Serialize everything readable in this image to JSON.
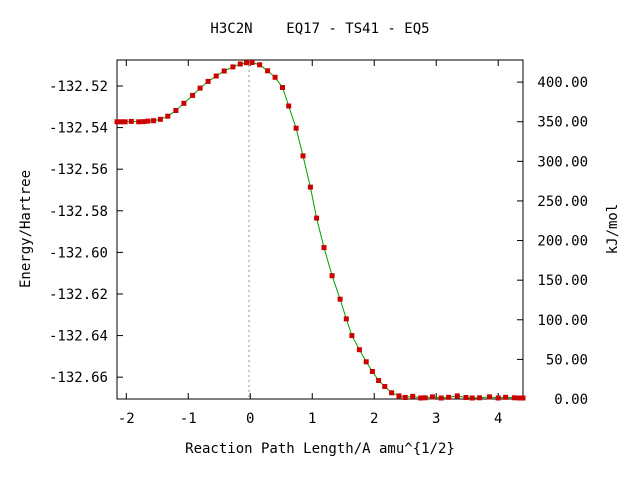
{
  "chart_data": {
    "type": "line",
    "title": "H3C2N    EQ17 - TS41 - EQ5",
    "xlabel": "Reaction Path Length/A amu^{1/2}",
    "ylabel": "Energy/Hartree",
    "y2label": "kJ/mol",
    "xlim": [
      -2.15,
      4.4
    ],
    "ylim": [
      -132.6705,
      -132.5075
    ],
    "y2lim": [
      0.0,
      427.9
    ],
    "x_ticks": [
      "-2",
      "-1",
      "0",
      "1",
      "2",
      "3",
      "4"
    ],
    "y_ticks": [
      "-132.52",
      "-132.54",
      "-132.56",
      "-132.58",
      "-132.60",
      "-132.62",
      "-132.64",
      "-132.66"
    ],
    "y2_ticks": [
      "400.00",
      "350.00",
      "300.00",
      "250.00",
      "200.00",
      "150.00",
      "100.00",
      "50.00",
      "0.00"
    ],
    "ts_marker_x": -0.02,
    "grid": false,
    "line_color": "#00a000",
    "marker_color": "#cc0000",
    "points": [
      [
        -2.15,
        -132.5372
      ],
      [
        -2.08,
        -132.5372
      ],
      [
        -2.02,
        -132.5372
      ],
      [
        -1.92,
        -132.537
      ],
      [
        -1.8,
        -132.5372
      ],
      [
        -1.72,
        -132.5371
      ],
      [
        -1.65,
        -132.5369
      ],
      [
        -1.56,
        -132.5367
      ],
      [
        -1.45,
        -132.536
      ],
      [
        -1.33,
        -132.5345
      ],
      [
        -1.2,
        -132.5318
      ],
      [
        -1.07,
        -132.5283
      ],
      [
        -0.93,
        -132.5245
      ],
      [
        -0.81,
        -132.521
      ],
      [
        -0.68,
        -132.5178
      ],
      [
        -0.55,
        -132.5152
      ],
      [
        -0.42,
        -132.5128
      ],
      [
        -0.28,
        -132.5108
      ],
      [
        -0.16,
        -132.5094
      ],
      [
        -0.06,
        -132.5088
      ],
      [
        0.03,
        -132.5087
      ],
      [
        0.15,
        -132.5098
      ],
      [
        0.28,
        -132.5127
      ],
      [
        0.4,
        -132.5158
      ],
      [
        0.52,
        -132.5207
      ],
      [
        0.62,
        -132.5296
      ],
      [
        0.74,
        -132.5403
      ],
      [
        0.85,
        -132.5536
      ],
      [
        0.97,
        -132.5686
      ],
      [
        1.07,
        -132.5835
      ],
      [
        1.19,
        -132.5977
      ],
      [
        1.32,
        -132.6112
      ],
      [
        1.45,
        -132.6225
      ],
      [
        1.55,
        -132.632
      ],
      [
        1.64,
        -132.64
      ],
      [
        1.76,
        -132.6468
      ],
      [
        1.87,
        -132.6526
      ],
      [
        1.97,
        -132.6573
      ],
      [
        2.07,
        -132.6616
      ],
      [
        2.17,
        -132.6645
      ],
      [
        2.28,
        -132.6675
      ],
      [
        2.4,
        -132.669
      ],
      [
        2.5,
        -132.6698
      ],
      [
        2.62,
        -132.6692
      ],
      [
        2.75,
        -132.67
      ],
      [
        2.82,
        -132.6699
      ],
      [
        2.94,
        -132.6695
      ],
      [
        3.08,
        -132.67
      ],
      [
        3.2,
        -132.6697
      ],
      [
        3.34,
        -132.669
      ],
      [
        3.48,
        -132.6698
      ],
      [
        3.58,
        -132.67
      ],
      [
        3.7,
        -132.6699
      ],
      [
        3.86,
        -132.6695
      ],
      [
        4.0,
        -132.67
      ],
      [
        4.12,
        -132.6697
      ],
      [
        4.26,
        -132.6699
      ],
      [
        4.34,
        -132.67
      ],
      [
        4.4,
        -132.67
      ]
    ]
  }
}
